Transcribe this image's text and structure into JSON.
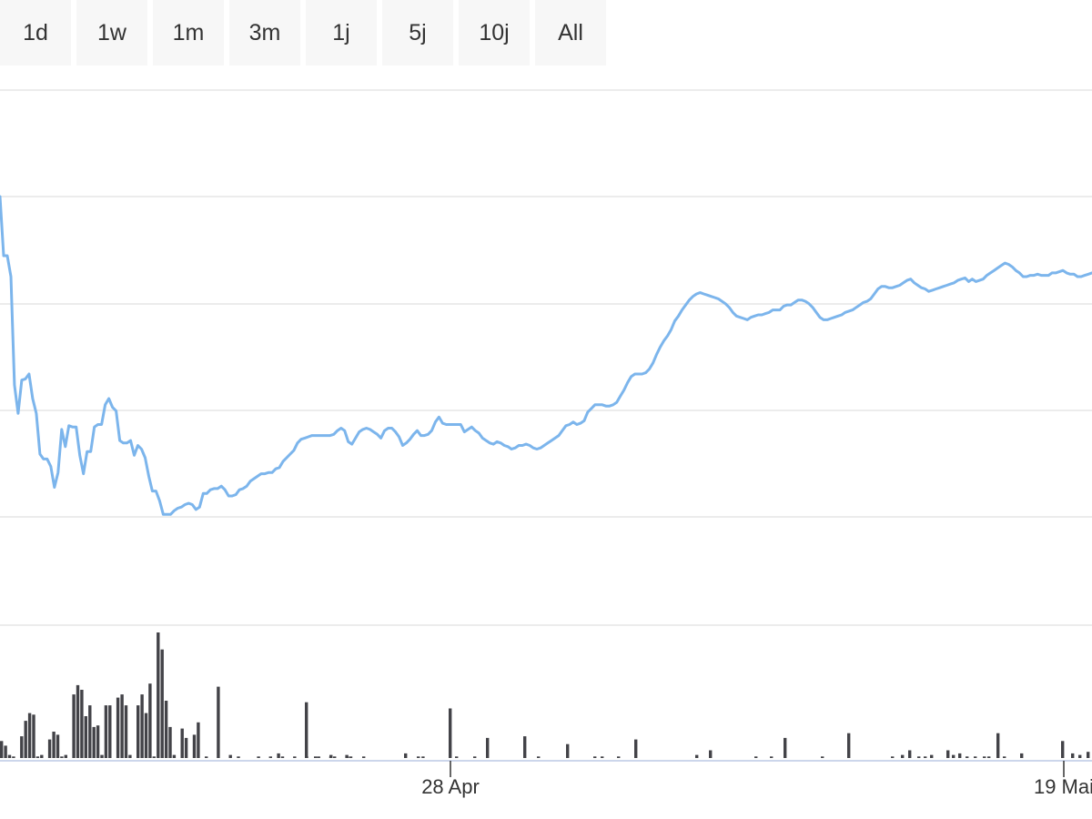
{
  "range_selector": {
    "buttons": [
      {
        "label": "1d"
      },
      {
        "label": "1w"
      },
      {
        "label": "1m"
      },
      {
        "label": "3m"
      },
      {
        "label": "1j"
      },
      {
        "label": "5j"
      },
      {
        "label": "10j"
      },
      {
        "label": "All"
      }
    ]
  },
  "chart_data": {
    "type": "line",
    "title": "",
    "xlabel": "",
    "ylabel": "",
    "grid": true,
    "x_ticks": [
      "28 Apr",
      "19 Mai"
    ],
    "colors": {
      "price_line": "#7cb5ec",
      "volume_bars": "#434348",
      "grid": "#e6e6e6",
      "axis": "#ccd6eb"
    },
    "series": [
      {
        "values": [
          4.0,
          3.52,
          3.52,
          3.35,
          2.47,
          2.24,
          2.51,
          2.52,
          2.56,
          2.36,
          2.24,
          1.91,
          1.87,
          1.87,
          1.81,
          1.64,
          1.76,
          2.11,
          1.97,
          2.14,
          2.13,
          2.13,
          1.9,
          1.75,
          1.93,
          1.93,
          2.13,
          2.15,
          2.15,
          2.31,
          2.36,
          2.29,
          2.26,
          2.02,
          2.0,
          2.0,
          2.02,
          1.9,
          1.98,
          1.95,
          1.88,
          1.73,
          1.61,
          1.61,
          1.53,
          1.42,
          1.42,
          1.42,
          1.45,
          1.47,
          1.48,
          1.5,
          1.51,
          1.5,
          1.46,
          1.48,
          1.59,
          1.59,
          1.62,
          1.63,
          1.63,
          1.65,
          1.62,
          1.57,
          1.57,
          1.58,
          1.62,
          1.63,
          1.65,
          1.69,
          1.71,
          1.73,
          1.75,
          1.75,
          1.76,
          1.76,
          1.79,
          1.8,
          1.85,
          1.88,
          1.91,
          1.94,
          2.0,
          2.03,
          2.04,
          2.05,
          2.06,
          2.06,
          2.06,
          2.06,
          2.06,
          2.06,
          2.07,
          2.1,
          2.12,
          2.1,
          2.01,
          1.99,
          2.04,
          2.09,
          2.11,
          2.12,
          2.11,
          2.09,
          2.07,
          2.04,
          2.1,
          2.12,
          2.12,
          2.09,
          2.05,
          1.98,
          2.0,
          2.03,
          2.07,
          2.1,
          2.06,
          2.06,
          2.07,
          2.1,
          2.17,
          2.21,
          2.16,
          2.15,
          2.15,
          2.15,
          2.15,
          2.15,
          2.09,
          2.11,
          2.13,
          2.1,
          2.08,
          2.04,
          2.02,
          2.0,
          1.99,
          2.01,
          2.0,
          1.98,
          1.97,
          1.95,
          1.96,
          1.98,
          1.98,
          1.99,
          1.98,
          1.96,
          1.95,
          1.96,
          1.98,
          2.0,
          2.02,
          2.04,
          2.06,
          2.1,
          2.14,
          2.15,
          2.17,
          2.15,
          2.16,
          2.18,
          2.25,
          2.28,
          2.31,
          2.31,
          2.31,
          2.3,
          2.3,
          2.31,
          2.33,
          2.38,
          2.43,
          2.49,
          2.54,
          2.56,
          2.56,
          2.56,
          2.57,
          2.6,
          2.65,
          2.72,
          2.78,
          2.83,
          2.87,
          2.92,
          2.99,
          3.03,
          3.08,
          3.12,
          3.16,
          3.19,
          3.21,
          3.22,
          3.21,
          3.2,
          3.19,
          3.18,
          3.17,
          3.15,
          3.13,
          3.1,
          3.06,
          3.03,
          3.02,
          3.01,
          3.0,
          3.02,
          3.03,
          3.04,
          3.04,
          3.05,
          3.06,
          3.08,
          3.08,
          3.08,
          3.11,
          3.12,
          3.12,
          3.14,
          3.16,
          3.16,
          3.15,
          3.13,
          3.1,
          3.06,
          3.02,
          3.0,
          3.0,
          3.01,
          3.02,
          3.03,
          3.04,
          3.06,
          3.07,
          3.08,
          3.1,
          3.12,
          3.14,
          3.15,
          3.17,
          3.21,
          3.25,
          3.27,
          3.27,
          3.26,
          3.26,
          3.27,
          3.28,
          3.3,
          3.32,
          3.33,
          3.3,
          3.28,
          3.26,
          3.25,
          3.23,
          3.24,
          3.25,
          3.26,
          3.27,
          3.28,
          3.29,
          3.3,
          3.32,
          3.33,
          3.34,
          3.31,
          3.33,
          3.31,
          3.32,
          3.33,
          3.36,
          3.38,
          3.4,
          3.42,
          3.44,
          3.46,
          3.45,
          3.43,
          3.4,
          3.38,
          3.35,
          3.35,
          3.36,
          3.36,
          3.37,
          3.36,
          3.36,
          3.36,
          3.38,
          3.38,
          3.39,
          3.4,
          3.38,
          3.37,
          3.37,
          3.35,
          3.35,
          3.36,
          3.37,
          3.38
        ]
      },
      {
        "values": [
          0.55,
          0.4,
          0.1,
          0.05,
          0.0,
          0.7,
          1.2,
          1.45,
          1.4,
          0.05,
          0.1,
          0.0,
          0.6,
          0.85,
          0.75,
          0.05,
          0.1,
          0.0,
          2.05,
          2.35,
          2.2,
          1.35,
          1.7,
          1.0,
          1.05,
          0.1,
          1.7,
          1.7,
          0.0,
          1.95,
          2.05,
          1.7,
          0.1,
          0.0,
          1.7,
          2.05,
          1.45,
          2.4,
          0.05,
          4.05,
          3.5,
          1.85,
          1.0,
          0.1,
          0.0,
          0.95,
          0.65,
          0.0,
          0.75,
          1.15,
          0.0,
          0.05,
          0.0,
          0.0,
          2.3,
          0.0,
          0.0,
          0.1,
          0.0,
          0.05,
          0.0,
          0.0,
          0.0,
          0.0,
          0.05,
          0.0,
          0.0,
          0.05,
          0.0,
          0.15,
          0.05,
          0.0,
          0.0,
          0.05,
          0.0,
          0.0,
          0.05,
          0.0,
          0.0,
          0.05,
          0.0,
          0.0,
          0.05,
          0.0,
          0.0,
          0.0,
          0.1,
          0.05,
          0.0,
          0.0,
          0.0,
          0.0,
          0.0,
          0.0,
          0.0,
          0.0,
          0.0,
          0.0,
          0.0,
          0.0,
          0.0,
          0.0,
          0.0,
          0.0,
          0.0,
          0.05,
          0.0,
          0.0,
          0.0,
          0.0,
          0.0,
          0.0,
          0.0,
          0.0,
          0.0,
          0.0,
          0.0,
          0.0,
          0.0,
          0.0,
          0.0,
          0.0,
          0.0,
          0.0,
          0.0,
          0.0,
          0.0,
          0.0,
          0.0,
          0.0,
          0.0,
          0.0,
          0.0,
          0.0,
          0.0,
          0.0,
          0.0,
          0.0,
          0.0,
          0.0,
          0.0,
          0.0,
          0.0,
          0.0,
          0.0,
          0.0,
          0.0,
          0.0,
          0.0,
          0.0,
          0.0,
          0.0,
          0.0,
          0.0,
          0.0,
          0.0,
          0.0,
          0.0,
          0.0,
          0.0,
          0.0,
          0.0,
          0.0,
          0.0,
          0.0,
          0.0,
          0.0,
          0.0,
          0.0,
          0.0,
          0.0,
          0.0,
          0.0,
          0.0,
          0.0,
          0.0,
          0.0,
          0.0,
          0.0,
          0.0,
          0.0,
          0.0,
          0.0,
          0.0,
          0.0,
          0.0,
          0.0,
          0.0,
          0.0,
          0.0,
          0.0,
          0.0,
          0.0,
          0.0,
          0.0,
          0.0,
          0.0,
          0.0,
          0.0,
          0.0,
          0.0,
          0.0,
          0.0,
          0.0,
          0.0,
          0.0,
          0.0,
          0.0,
          0.0,
          0.0,
          0.0,
          0.0,
          0.0,
          0.0,
          0.0,
          0.0,
          0.0,
          0.0,
          0.0,
          0.0,
          0.0,
          0.0,
          0.0,
          0.0,
          0.0,
          0.0,
          0.0,
          0.0,
          0.0,
          0.0,
          0.0,
          0.0,
          0.0,
          0.0,
          0.0,
          0.0,
          0.0,
          0.0,
          0.0,
          0.0,
          0.0,
          0.0,
          0.0,
          0.0,
          0.0,
          0.0,
          0.0,
          0.0,
          0.0,
          0.0,
          0.0,
          0.0,
          0.0,
          0.0,
          0.0,
          0.0,
          0.0,
          0.0,
          0.0,
          0.0,
          0.0,
          0.0,
          0.0,
          0.0,
          0.0,
          0.0,
          0.0,
          0.0,
          0.0,
          0.0,
          0.0,
          0.0,
          0.0,
          0.0,
          0.0,
          0.0,
          0.0,
          0.0,
          0.0,
          0.0,
          0.0,
          0.0,
          0.0,
          0.0,
          0.0,
          0.0,
          0.0,
          0.0,
          0.0,
          0.0,
          0.0,
          0.0,
          0.0,
          0.0,
          0.0,
          0.0,
          0.0,
          0.0,
          0.0,
          0.0,
          0.0,
          0.0,
          0.0,
          0.0,
          0.0,
          0.0,
          0.0,
          0.0,
          0.0,
          0.0,
          0.0,
          0.0,
          0.0,
          0.0,
          0.0,
          0.0,
          0.0,
          0.0,
          0.0,
          0.0,
          0.0,
          0.0,
          0.0,
          0.0,
          0.0,
          0.0,
          0.0,
          0.0,
          0.0,
          0.0,
          0.0,
          0.0,
          0.0,
          0.0,
          0.0,
          0.0,
          0.0,
          0.0,
          0.0,
          0.0,
          0.0,
          0.0,
          0.0,
          0.0,
          0.0,
          0.0,
          0.0,
          0.0,
          0.0,
          0.0,
          0.0,
          0.0,
          0.0,
          0.0,
          0.0,
          0.0,
          0.0,
          0.0,
          0.0,
          0.0,
          0.0,
          0.0,
          0.0,
          0.0,
          0.0,
          0.0,
          0.0,
          0.0,
          0.0,
          0.0,
          0.0,
          0.0,
          0.0,
          0.0,
          0.0,
          0.0,
          0.0,
          0.0,
          0.0,
          0.0,
          0.0,
          0.0,
          0.0,
          0.0,
          0.0,
          0.0,
          0.0,
          0.0,
          0.0,
          0.0,
          0.0,
          0.0,
          0.0,
          0.0,
          0.0,
          0.0,
          0.0,
          0.0,
          0.0,
          0.0,
          0.0,
          0.0,
          0.0,
          0.0,
          0.0,
          0.0
        ]
      }
    ]
  }
}
